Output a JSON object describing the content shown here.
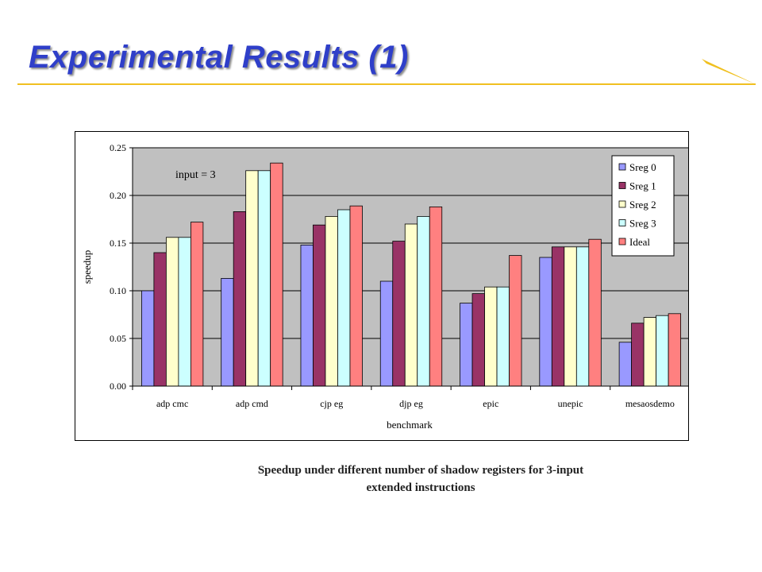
{
  "slide": {
    "title": "Experimental Results (1)",
    "caption_line1": "Speedup under different number of shadow registers for 3-input",
    "caption_line2": "extended instructions",
    "title_color": "#2f3fc9",
    "rule_color": "#f0c020"
  },
  "chart_data": {
    "type": "bar",
    "title": "",
    "annotation": "input = 3",
    "xlabel": "benchmark",
    "ylabel": "speedup",
    "ylim": [
      0,
      0.25
    ],
    "yticks": [
      "0.00",
      "0.05",
      "0.10",
      "0.15",
      "0.20",
      "0.25"
    ],
    "grid": true,
    "legend_position": "top-right",
    "categories": [
      "adpcmc",
      "adpcmd",
      "cjpeg",
      "djpeg",
      "epic",
      "unepic",
      "mesaosdemo"
    ],
    "category_labels": [
      "adp cmc",
      "adp cmd",
      "cjp eg",
      "djp eg",
      "epic",
      "unepic",
      "mesaosdemo"
    ],
    "series": [
      {
        "name": "Sreg 0",
        "color": "#9999ff",
        "values": [
          0.1,
          0.113,
          0.148,
          0.11,
          0.087,
          0.135,
          0.046
        ]
      },
      {
        "name": "Sreg 1",
        "color": "#993366",
        "values": [
          0.14,
          0.183,
          0.169,
          0.152,
          0.097,
          0.146,
          0.066
        ]
      },
      {
        "name": "Sreg 2",
        "color": "#ffffcc",
        "values": [
          0.156,
          0.226,
          0.178,
          0.17,
          0.104,
          0.146,
          0.072
        ]
      },
      {
        "name": "Sreg 3",
        "color": "#ccffff",
        "values": [
          0.156,
          0.226,
          0.185,
          0.178,
          0.104,
          0.146,
          0.074
        ]
      },
      {
        "name": "Ideal",
        "color": "#ff8080",
        "values": [
          0.172,
          0.234,
          0.189,
          0.188,
          0.137,
          0.154,
          0.076
        ]
      }
    ]
  }
}
